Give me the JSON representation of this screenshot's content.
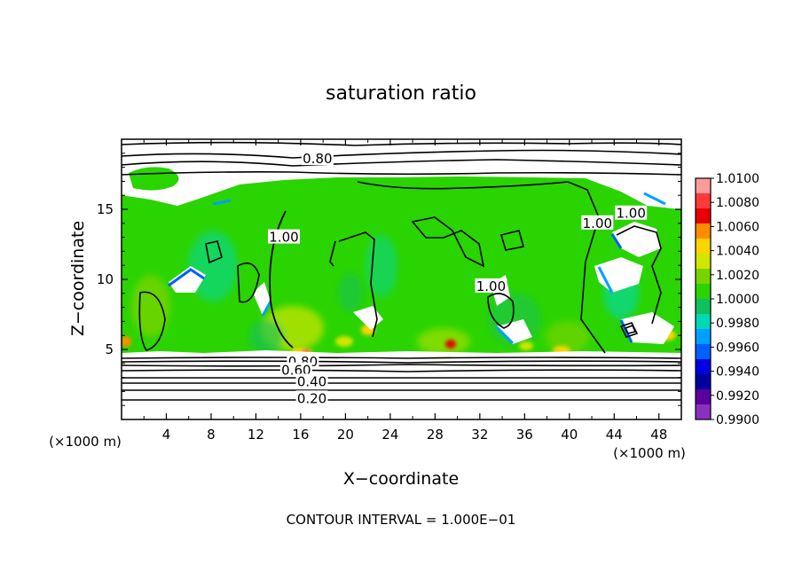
{
  "chart_data": {
    "type": "heatmap",
    "title": "saturation ratio",
    "xlabel": "X−coordinate",
    "ylabel": "Z−coordinate",
    "x_unit_left": "(×1000 m)",
    "x_unit_right": "(×1000 m)",
    "footnote": "CONTOUR INTERVAL = 1.000E−01",
    "xlim": [
      0,
      50
    ],
    "ylim": [
      0,
      20
    ],
    "x_ticks": [
      4,
      8,
      12,
      16,
      20,
      24,
      28,
      32,
      36,
      40,
      44,
      48
    ],
    "y_ticks": [
      5,
      10,
      15
    ],
    "colorbar": {
      "labels": [
        "1.0100",
        "1.0080",
        "1.0060",
        "1.0040",
        "1.0020",
        "1.0000",
        "0.9980",
        "0.9960",
        "0.9940",
        "0.9920",
        "0.9900"
      ],
      "values": [
        1.01,
        1.008,
        1.006,
        1.004,
        1.002,
        1.0,
        0.998,
        0.996,
        0.994,
        0.992,
        0.99
      ],
      "colors": [
        "#ff9a9a",
        "#ff3a3a",
        "#e60000",
        "#ff8c00",
        "#ffd400",
        "#d2e600",
        "#77d400",
        "#2ad400",
        "#10c060",
        "#00d8b8",
        "#00a0ff",
        "#0060ff",
        "#0000e0",
        "#0000a0",
        "#5a00a0",
        "#8a30c0"
      ],
      "range": [
        0.99,
        1.01
      ]
    },
    "contour_labels": [
      {
        "text": "0.80",
        "x": 17.5,
        "z": 18.6
      },
      {
        "text": "1.00",
        "x": 14.5,
        "z": 13.0
      },
      {
        "text": "1.00",
        "x": 42.5,
        "z": 14.0
      },
      {
        "text": "1.00",
        "x": 45.5,
        "z": 14.7
      },
      {
        "text": "1.00",
        "x": 33.0,
        "z": 9.5
      },
      {
        "text": "0.80",
        "x": 16.2,
        "z": 4.1
      },
      {
        "text": "0.60",
        "x": 15.6,
        "z": 3.5
      },
      {
        "text": "0.40",
        "x": 17.0,
        "z": 2.7
      },
      {
        "text": "0.20",
        "x": 17.0,
        "z": 1.5
      }
    ],
    "contour_levels_sample": [
      0.2,
      0.4,
      0.6,
      0.8,
      1.0
    ],
    "colors": {
      "low": "#0000a0",
      "mid": "#2ad400",
      "high": "#e60000",
      "background": "#ffffff"
    }
  }
}
